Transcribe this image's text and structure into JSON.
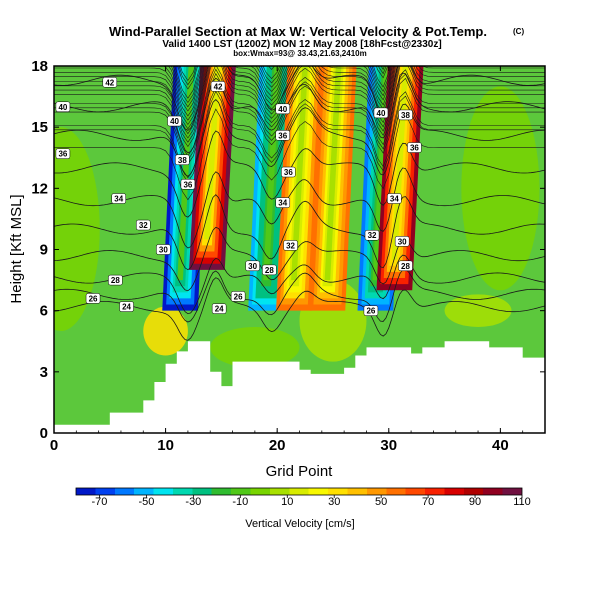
{
  "chart_data": {
    "type": "heatmap",
    "title": "Wind-Parallel Section at Max W: Vertical Velocity & Pot.Temp.",
    "title_mark": "(C)",
    "subtitle": "Valid 1400 LST (1200Z) MON 12 May 2008 [18hFcst@2330z]",
    "subtitle2": "box:Wmax=93@ 33.43,21.63,2410m",
    "xlabel": "Grid Point",
    "ylabel": "Height [Kft MSL]",
    "xlim": [
      0,
      44
    ],
    "ylim": [
      0,
      18
    ],
    "xticks": [
      "0",
      "10",
      "20",
      "30",
      "40"
    ],
    "yticks": [
      "0",
      "3",
      "6",
      "9",
      "12",
      "15",
      "18"
    ],
    "colorbar": {
      "label": "Vertical Velocity [cm/s]",
      "ticks": [
        "-70",
        "-50",
        "-30",
        "-10",
        "10",
        "30",
        "50",
        "70",
        "90",
        "110"
      ],
      "range": [
        -80,
        110
      ],
      "colors": [
        "#0018c8",
        "#0040f0",
        "#0078ff",
        "#00b4ff",
        "#00e4f0",
        "#00d8b0",
        "#00c080",
        "#30bc30",
        "#50c818",
        "#78d400",
        "#a8e000",
        "#d8ec00",
        "#f8f800",
        "#ffe000",
        "#ffc000",
        "#ff9800",
        "#ff7000",
        "#ff4800",
        "#f82000",
        "#d80000",
        "#b00000",
        "#900020",
        "#701040"
      ]
    },
    "vertical_velocity_columns": [
      {
        "x": 11.8,
        "w": -75,
        "from": 6,
        "to": 18
      },
      {
        "x": 14.2,
        "w": 105,
        "from": 8,
        "to": 18
      },
      {
        "x": 19.5,
        "w": -50,
        "from": 6,
        "to": 18
      },
      {
        "x": 22,
        "w": 55,
        "from": 6,
        "to": 18
      },
      {
        "x": 25,
        "w": 60,
        "from": 6,
        "to": 18
      },
      {
        "x": 29.3,
        "w": -60,
        "from": 6,
        "to": 18
      },
      {
        "x": 31,
        "w": 95,
        "from": 7,
        "to": 18
      }
    ],
    "terrain_profile": [
      [
        0,
        0.4
      ],
      [
        5,
        0.4
      ],
      [
        5,
        1
      ],
      [
        8,
        1
      ],
      [
        8,
        1.6
      ],
      [
        9,
        1.6
      ],
      [
        9,
        2.5
      ],
      [
        10,
        2.5
      ],
      [
        10,
        3.4
      ],
      [
        11,
        3.4
      ],
      [
        11,
        4
      ],
      [
        12,
        4
      ],
      [
        12,
        4.5
      ],
      [
        14,
        4.5
      ],
      [
        14,
        3
      ],
      [
        15,
        3
      ],
      [
        15,
        2.3
      ],
      [
        16,
        2.3
      ],
      [
        16,
        3.5
      ],
      [
        22,
        3.5
      ],
      [
        22,
        3.1
      ],
      [
        23,
        3.1
      ],
      [
        23,
        2.9
      ],
      [
        26,
        2.9
      ],
      [
        26,
        3.2
      ],
      [
        27,
        3.2
      ],
      [
        27,
        3.8
      ],
      [
        28,
        3.8
      ],
      [
        28,
        4.2
      ],
      [
        32,
        4.2
      ],
      [
        32,
        3.9
      ],
      [
        33,
        3.9
      ],
      [
        33,
        4.2
      ],
      [
        35,
        4.2
      ],
      [
        35,
        4.5
      ],
      [
        39,
        4.5
      ],
      [
        39,
        4.2
      ],
      [
        42,
        4.2
      ],
      [
        42,
        3.7
      ],
      [
        44,
        3.7
      ]
    ],
    "potential_temperature_labels": [
      {
        "x": 5,
        "y": 17.2,
        "text": "42"
      },
      {
        "x": 0.8,
        "y": 16,
        "text": "40"
      },
      {
        "x": 0.8,
        "y": 13.7,
        "text": "36"
      },
      {
        "x": 5.8,
        "y": 11.5,
        "text": "34"
      },
      {
        "x": 8,
        "y": 10.2,
        "text": "32"
      },
      {
        "x": 9.8,
        "y": 9,
        "text": "30"
      },
      {
        "x": 5.5,
        "y": 7.5,
        "text": "28"
      },
      {
        "x": 3.5,
        "y": 6.6,
        "text": "26"
      },
      {
        "x": 6.5,
        "y": 6.2,
        "text": "24"
      },
      {
        "x": 10.8,
        "y": 15.3,
        "text": "40"
      },
      {
        "x": 11.5,
        "y": 13.4,
        "text": "38"
      },
      {
        "x": 12,
        "y": 12.2,
        "text": "36"
      },
      {
        "x": 14.7,
        "y": 17,
        "text": "42"
      },
      {
        "x": 20.5,
        "y": 15.9,
        "text": "40"
      },
      {
        "x": 20.5,
        "y": 14.6,
        "text": "36"
      },
      {
        "x": 21,
        "y": 12.8,
        "text": "36"
      },
      {
        "x": 20.5,
        "y": 11.3,
        "text": "34"
      },
      {
        "x": 21.2,
        "y": 9.2,
        "text": "32"
      },
      {
        "x": 17.8,
        "y": 8.2,
        "text": "30"
      },
      {
        "x": 19.3,
        "y": 8,
        "text": "28"
      },
      {
        "x": 16.5,
        "y": 6.7,
        "text": "26"
      },
      {
        "x": 14.8,
        "y": 6.1,
        "text": "24"
      },
      {
        "x": 29.3,
        "y": 15.7,
        "text": "40"
      },
      {
        "x": 31.5,
        "y": 15.6,
        "text": "38"
      },
      {
        "x": 32.3,
        "y": 14,
        "text": "36"
      },
      {
        "x": 30.5,
        "y": 11.5,
        "text": "34"
      },
      {
        "x": 28.5,
        "y": 9.7,
        "text": "32"
      },
      {
        "x": 31.2,
        "y": 9.4,
        "text": "30"
      },
      {
        "x": 31.5,
        "y": 8.2,
        "text": "28"
      },
      {
        "x": 28.4,
        "y": 6,
        "text": "26"
      }
    ]
  }
}
